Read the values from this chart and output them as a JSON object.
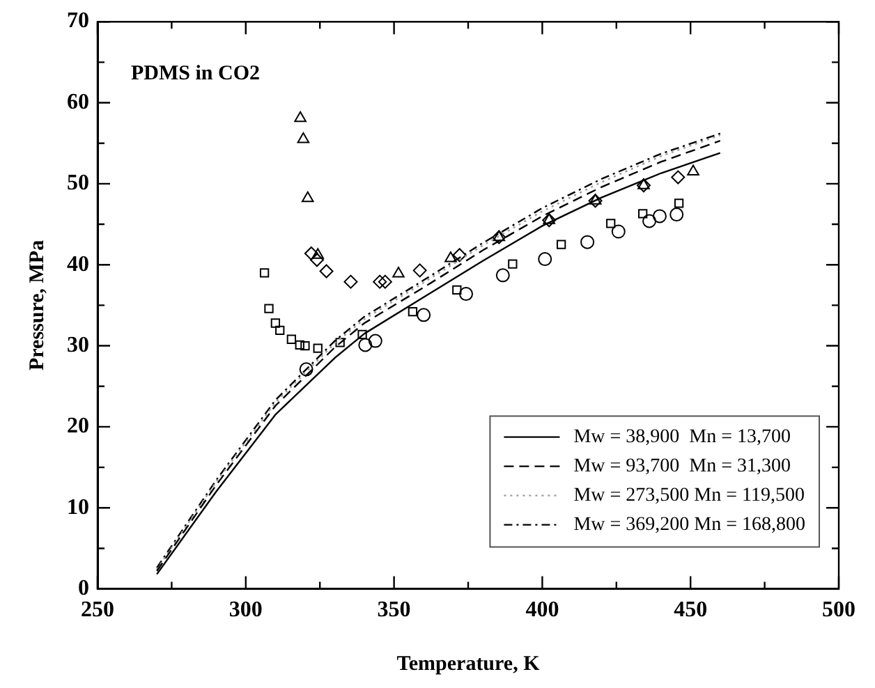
{
  "chart_data": {
    "type": "line",
    "xlabel": "Temperature, K",
    "ylabel": "Pressure, MPa",
    "annotations": [
      "PDMS in CO2"
    ],
    "xlim": [
      250,
      500
    ],
    "ylim": [
      0,
      70
    ],
    "xticks": [
      250,
      {
        "value": 275,
        "label": null
      },
      300,
      {
        "value": 325,
        "label": null
      },
      350,
      {
        "value": 375,
        "label": null
      },
      400,
      {
        "value": 425,
        "label": null
      },
      450,
      {
        "value": 475,
        "label": null
      },
      500
    ],
    "yticks": [
      0,
      {
        "value": 5,
        "label": null
      },
      10,
      {
        "value": 15,
        "label": null
      },
      20,
      {
        "value": 25,
        "label": null
      },
      30,
      {
        "value": 35,
        "label": null
      },
      40,
      {
        "value": 45,
        "label": null
      },
      50,
      {
        "value": 55,
        "label": null
      },
      60,
      {
        "value": 65,
        "label": null
      },
      70
    ],
    "grid": false,
    "legend": "bottom right",
    "marker": "none",
    "series": [
      {
        "name": "Mw = 38,900  Mn = 13,700",
        "color": "#000000",
        "line_style": "solid",
        "x": [
          270,
          290,
          310,
          330,
          340,
          360,
          380,
          400,
          420,
          440,
          460
        ],
        "values": [
          1.8,
          12,
          21.5,
          28.5,
          31.5,
          36,
          40.5,
          44.8,
          48.3,
          51.3,
          53.8
        ]
      },
      {
        "name": "Mw = 93,700  Mn = 31,300",
        "color": "#000000",
        "line_style": "dashed",
        "x": [
          270,
          290,
          310,
          330,
          340,
          360,
          380,
          400,
          420,
          440,
          460
        ],
        "values": [
          2.2,
          12.8,
          22.6,
          29.8,
          32.8,
          37.2,
          41.8,
          46,
          49.6,
          52.7,
          55.3
        ]
      },
      {
        "name": "Mw = 273,500 Mn = 119,500",
        "color": "#9a9a9a",
        "line_style": "dotted",
        "x": [
          270,
          290,
          310,
          330,
          340,
          360,
          380,
          400,
          420,
          440,
          460
        ],
        "values": [
          2.4,
          13.2,
          23,
          30.3,
          33.3,
          37.8,
          42.4,
          46.6,
          50.2,
          53.4,
          56
        ]
      },
      {
        "name": "Mw = 369,200 Mn = 168,800",
        "color": "#000000",
        "line_style": "dashdot",
        "x": [
          270,
          290,
          310,
          330,
          340,
          360,
          380,
          400,
          420,
          440,
          460
        ],
        "values": [
          2.6,
          13.4,
          23.3,
          30.6,
          33.6,
          38.1,
          42.7,
          47,
          50.6,
          53.7,
          56.2
        ]
      },
      {
        "type": "scatter",
        "color": "#000000",
        "marker": "triangle",
        "x": [
          318.4,
          319.4,
          320.9,
          324.3,
          351.5,
          369.1,
          385.4,
          402.3,
          417.9,
          434.2,
          450.9
        ],
        "values": [
          58.1,
          55.5,
          48.2,
          41.2,
          38.9,
          40.8,
          43.4,
          45.5,
          47.9,
          49.8,
          51.5
        ]
      },
      {
        "type": "scatter",
        "color": "#000000",
        "marker": "diamond",
        "x": [
          322.1,
          324,
          327.2,
          335.4,
          345.2,
          347,
          358.7,
          372.1,
          385.4,
          402.3,
          417.9,
          434.2,
          445.8
        ],
        "values": [
          41.4,
          40.6,
          39.2,
          37.9,
          37.9,
          37.9,
          39.3,
          41.2,
          43.4,
          45.5,
          47.9,
          49.8,
          50.8
        ]
      },
      {
        "type": "scatter",
        "color": "#000000",
        "marker": "square",
        "x": [
          306.3,
          307.8,
          310,
          311.5,
          315.4,
          318.2,
          320,
          324.3,
          331.8,
          339.3,
          356.3,
          371.2,
          390,
          406.4,
          423.1,
          433.9,
          446.1
        ],
        "values": [
          39,
          34.6,
          32.8,
          31.9,
          30.8,
          30.1,
          30,
          29.7,
          30.4,
          31.4,
          34.2,
          36.9,
          40.1,
          42.5,
          45.1,
          46.3,
          47.6
        ]
      },
      {
        "type": "scatter",
        "color": "#000000",
        "marker": "circle",
        "x": [
          320.4,
          340.3,
          343.7,
          360,
          374.3,
          386.7,
          400.9,
          415.2,
          425.7,
          436.1,
          439.6,
          445.3
        ],
        "values": [
          27.1,
          30.1,
          30.6,
          33.8,
          36.4,
          38.7,
          40.7,
          42.8,
          44.1,
          45.4,
          46,
          46.2
        ]
      }
    ]
  }
}
